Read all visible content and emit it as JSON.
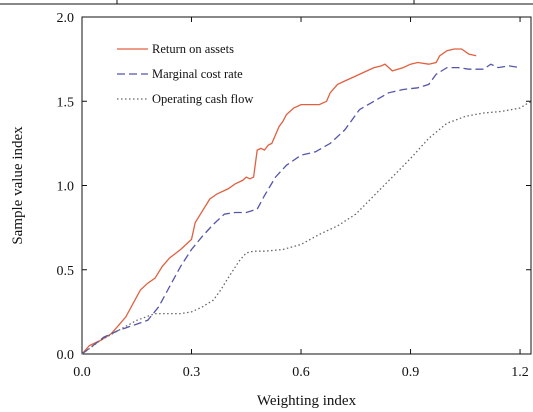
{
  "chart_data": {
    "type": "line",
    "xlabel": "Weighting index",
    "ylabel": "Sample value index",
    "xlim": [
      0.0,
      1.23
    ],
    "ylim": [
      0.0,
      2.0
    ],
    "x_ticks": [
      "0.0",
      "0.3",
      "0.6",
      "0.9",
      "1.2"
    ],
    "y_ticks": [
      "0.0",
      "0.5",
      "1.0",
      "1.5",
      "2.0"
    ],
    "grid": false,
    "legend_position": "top-left",
    "series": [
      {
        "name": "Return on assets",
        "color": "#e06040",
        "style": "solid",
        "x": [
          0.0,
          0.02,
          0.05,
          0.08,
          0.1,
          0.12,
          0.14,
          0.16,
          0.18,
          0.2,
          0.22,
          0.24,
          0.27,
          0.3,
          0.31,
          0.33,
          0.35,
          0.37,
          0.4,
          0.42,
          0.44,
          0.45,
          0.46,
          0.47,
          0.48,
          0.49,
          0.5,
          0.51,
          0.52,
          0.53,
          0.54,
          0.55,
          0.56,
          0.58,
          0.6,
          0.62,
          0.65,
          0.67,
          0.68,
          0.7,
          0.72,
          0.75,
          0.77,
          0.8,
          0.82,
          0.83,
          0.85,
          0.88,
          0.9,
          0.92,
          0.95,
          0.97,
          0.98,
          1.0,
          1.02,
          1.04,
          1.06,
          1.08
        ],
        "values": [
          0.0,
          0.05,
          0.08,
          0.12,
          0.17,
          0.22,
          0.3,
          0.38,
          0.42,
          0.45,
          0.52,
          0.57,
          0.62,
          0.68,
          0.78,
          0.85,
          0.92,
          0.95,
          0.98,
          1.01,
          1.03,
          1.05,
          1.04,
          1.05,
          1.21,
          1.22,
          1.21,
          1.24,
          1.25,
          1.3,
          1.35,
          1.38,
          1.42,
          1.46,
          1.48,
          1.48,
          1.48,
          1.5,
          1.55,
          1.6,
          1.62,
          1.65,
          1.67,
          1.7,
          1.71,
          1.72,
          1.68,
          1.7,
          1.72,
          1.73,
          1.72,
          1.73,
          1.77,
          1.8,
          1.81,
          1.81,
          1.78,
          1.77
        ],
        "legend_label": "Return on assets"
      },
      {
        "name": "Marginal cost rate",
        "color": "#5555aa",
        "style": "dashed",
        "x": [
          0.0,
          0.03,
          0.06,
          0.1,
          0.14,
          0.18,
          0.21,
          0.24,
          0.27,
          0.3,
          0.33,
          0.36,
          0.39,
          0.42,
          0.45,
          0.48,
          0.5,
          0.53,
          0.56,
          0.6,
          0.64,
          0.68,
          0.72,
          0.76,
          0.8,
          0.84,
          0.88,
          0.92,
          0.95,
          0.97,
          1.0,
          1.03,
          1.06,
          1.1,
          1.12,
          1.14,
          1.17,
          1.2
        ],
        "values": [
          0.0,
          0.05,
          0.1,
          0.14,
          0.17,
          0.2,
          0.28,
          0.4,
          0.52,
          0.62,
          0.7,
          0.77,
          0.83,
          0.84,
          0.84,
          0.86,
          0.94,
          1.05,
          1.12,
          1.18,
          1.2,
          1.25,
          1.33,
          1.45,
          1.5,
          1.55,
          1.57,
          1.58,
          1.6,
          1.66,
          1.7,
          1.7,
          1.69,
          1.69,
          1.72,
          1.7,
          1.71,
          1.7
        ],
        "legend_label": "Marginal cost rate"
      },
      {
        "name": "Operating cash flow",
        "color": "#666666",
        "style": "dotted",
        "x": [
          0.0,
          0.05,
          0.1,
          0.15,
          0.2,
          0.24,
          0.27,
          0.3,
          0.33,
          0.36,
          0.38,
          0.4,
          0.43,
          0.45,
          0.47,
          0.5,
          0.55,
          0.6,
          0.65,
          0.7,
          0.75,
          0.8,
          0.85,
          0.9,
          0.95,
          1.0,
          1.05,
          1.1,
          1.15,
          1.2,
          1.23
        ],
        "values": [
          0.0,
          0.08,
          0.14,
          0.2,
          0.24,
          0.24,
          0.24,
          0.25,
          0.28,
          0.32,
          0.38,
          0.45,
          0.55,
          0.6,
          0.61,
          0.61,
          0.62,
          0.65,
          0.71,
          0.76,
          0.83,
          0.94,
          1.05,
          1.16,
          1.28,
          1.37,
          1.41,
          1.43,
          1.44,
          1.46,
          1.5
        ],
        "legend_label": "Operating cash flow"
      }
    ]
  },
  "colors": {
    "axis": "#111111",
    "background": "#ffffff"
  }
}
